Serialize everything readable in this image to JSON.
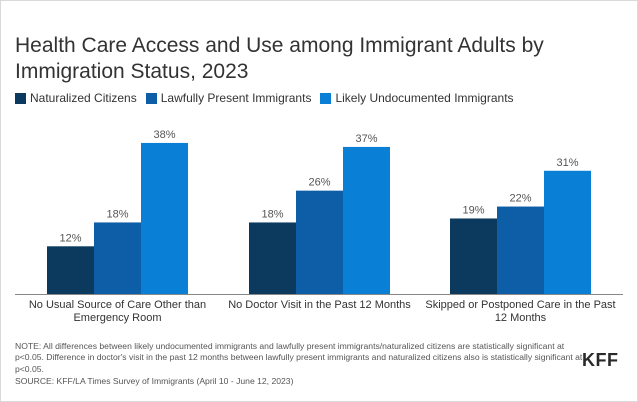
{
  "title": "Health Care Access and Use among Immigrant Adults by Immigration Status, 2023",
  "legend": [
    {
      "label": "Naturalized Citizens",
      "color": "#0b3a5e"
    },
    {
      "label": "Lawfully Present Immigrants",
      "color": "#0d5ea6"
    },
    {
      "label": "Likely Undocumented Immigrants",
      "color": "#0a7fd6"
    }
  ],
  "chart_data": {
    "type": "bar",
    "title": "Health Care Access and Use among Immigrant Adults by Immigration Status, 2023",
    "xlabel": "",
    "ylabel": "",
    "ylim": [
      0,
      40
    ],
    "grid": false,
    "legend_position": "top-left",
    "categories": [
      [
        "No Usual Source of Care Other than",
        "Emergency Room"
      ],
      [
        "No Doctor Visit in the Past 12 Months"
      ],
      [
        "Skipped or Postponed Care in the Past",
        "12 Months"
      ]
    ],
    "series": [
      {
        "name": "Naturalized Citizens",
        "color": "#0b3a5e",
        "values": [
          12,
          18,
          19
        ],
        "labels": [
          "12%",
          "18%",
          "19%"
        ]
      },
      {
        "name": "Lawfully Present Immigrants",
        "color": "#0d5ea6",
        "values": [
          18,
          26,
          22
        ],
        "labels": [
          "18%",
          "26%",
          "22%"
        ]
      },
      {
        "name": "Likely Undocumented Immigrants",
        "color": "#0a7fd6",
        "values": [
          38,
          37,
          31
        ],
        "labels": [
          "38%",
          "37%",
          "31%"
        ]
      }
    ]
  },
  "note": "NOTE: All differences between likely undocumented immigrants and lawfully present immigrants/naturalized citizens are statistically significant at p<0.05. Difference in doctor's visit in the past 12 months between lawfully present immigrants and naturalized citizens also is statistically significant at p<0.05.",
  "source": "SOURCE: KFF/LA Times Survey of Immigrants (April 10 - June 12, 2023)",
  "logo": "KFF"
}
